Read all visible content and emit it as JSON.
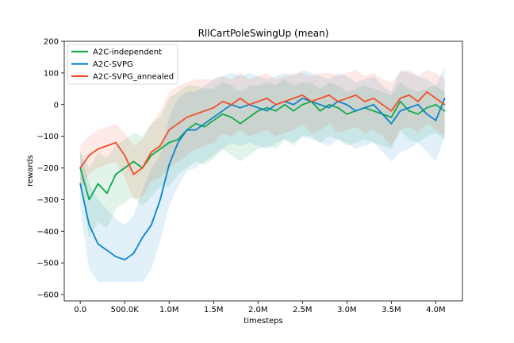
{
  "chart_data": {
    "type": "line",
    "title": "RllCartPoleSwingUp (mean)",
    "xlabel": "timesteps",
    "ylabel": "rewards",
    "xlim": [
      -180000,
      4300000
    ],
    "ylim": [
      -620,
      200
    ],
    "xticks": [
      0,
      500000,
      1000000,
      1500000,
      2000000,
      2500000,
      3000000,
      3500000,
      4000000
    ],
    "xtick_labels": [
      "0.0",
      "500.0K",
      "1.0M",
      "1.5M",
      "2.0M",
      "2.5M",
      "3.0M",
      "3.5M",
      "4.0M"
    ],
    "yticks": [
      200,
      100,
      0,
      -100,
      -200,
      -300,
      -400,
      -500,
      -600
    ],
    "ytick_labels": [
      "200",
      "100",
      "0",
      "−100",
      "−200",
      "−300",
      "−400",
      "−500",
      "−600"
    ],
    "grid": false,
    "legend_position": "top-left",
    "x": [
      0,
      100000,
      200000,
      300000,
      400000,
      500000,
      600000,
      700000,
      800000,
      900000,
      1000000,
      1100000,
      1200000,
      1300000,
      1400000,
      1500000,
      1600000,
      1700000,
      1800000,
      1900000,
      2000000,
      2100000,
      2200000,
      2300000,
      2400000,
      2500000,
      2600000,
      2700000,
      2800000,
      2900000,
      3000000,
      3100000,
      3200000,
      3300000,
      3400000,
      3500000,
      3600000,
      3700000,
      3800000,
      3900000,
      4000000,
      4100000
    ],
    "series": [
      {
        "name": "A2C-independent",
        "color": "#10a84a",
        "values": [
          -200,
          -300,
          -250,
          -280,
          -220,
          -200,
          -180,
          -200,
          -160,
          -140,
          -120,
          -110,
          -80,
          -60,
          -70,
          -50,
          -30,
          -40,
          -60,
          -40,
          -20,
          -10,
          -20,
          0,
          -20,
          0,
          10,
          -20,
          0,
          -10,
          -30,
          -20,
          -10,
          -20,
          -30,
          -40,
          10,
          -20,
          -30,
          -10,
          0,
          -20
        ],
        "upper": [
          -150,
          -200,
          -150,
          -170,
          -130,
          -110,
          -90,
          -100,
          -60,
          -40,
          20,
          40,
          60,
          60,
          50,
          50,
          70,
          60,
          40,
          60,
          60,
          70,
          60,
          80,
          60,
          70,
          70,
          50,
          70,
          60,
          40,
          50,
          60,
          50,
          40,
          30,
          70,
          50,
          40,
          50,
          60,
          40
        ],
        "lower": [
          -250,
          -420,
          -370,
          -390,
          -330,
          -310,
          -290,
          -320,
          -290,
          -260,
          -260,
          -220,
          -200,
          -180,
          -190,
          -170,
          -140,
          -160,
          -180,
          -160,
          -140,
          -130,
          -140,
          -110,
          -130,
          -100,
          -100,
          -120,
          -100,
          -110,
          -130,
          -120,
          -110,
          -120,
          -130,
          -140,
          -80,
          -110,
          -120,
          -100,
          -90,
          -110
        ]
      },
      {
        "name": "A2C-SVPG",
        "color": "#0a84cc",
        "values": [
          -250,
          -380,
          -440,
          -460,
          -480,
          -490,
          -470,
          -420,
          -380,
          -300,
          -190,
          -120,
          -80,
          -80,
          -60,
          -40,
          -20,
          0,
          -10,
          0,
          -10,
          -20,
          0,
          10,
          0,
          20,
          10,
          0,
          -10,
          10,
          0,
          -20,
          -10,
          0,
          -30,
          -60,
          -20,
          -10,
          0,
          -30,
          -50,
          20
        ],
        "upper": [
          -150,
          -250,
          -300,
          -330,
          -360,
          -380,
          -350,
          -270,
          -200,
          -160,
          -40,
          20,
          40,
          40,
          60,
          80,
          90,
          100,
          90,
          100,
          90,
          80,
          90,
          100,
          90,
          110,
          100,
          90,
          80,
          100,
          90,
          70,
          80,
          90,
          60,
          40,
          110,
          100,
          90,
          80,
          60,
          120
        ],
        "lower": [
          -330,
          -520,
          -560,
          -560,
          -560,
          -560,
          -560,
          -560,
          -520,
          -430,
          -320,
          -260,
          -210,
          -200,
          -180,
          -160,
          -140,
          -120,
          -130,
          -120,
          -130,
          -140,
          -120,
          -110,
          -120,
          -100,
          -110,
          -120,
          -130,
          -110,
          -120,
          -140,
          -130,
          -120,
          -150,
          -180,
          -150,
          -140,
          -120,
          -150,
          -180,
          -100
        ]
      },
      {
        "name": "A2C-SVPG_annealed",
        "color": "#f04e28",
        "values": [
          -200,
          -160,
          -140,
          -130,
          -120,
          -160,
          -220,
          -200,
          -150,
          -130,
          -80,
          -60,
          -40,
          -30,
          -20,
          -10,
          10,
          0,
          20,
          0,
          10,
          20,
          0,
          10,
          20,
          30,
          10,
          20,
          30,
          10,
          20,
          30,
          10,
          20,
          0,
          -20,
          20,
          30,
          10,
          40,
          20,
          0
        ],
        "upper": [
          -130,
          -100,
          -80,
          -70,
          -60,
          -90,
          -130,
          -110,
          -60,
          -20,
          40,
          60,
          70,
          80,
          80,
          80,
          90,
          80,
          100,
          80,
          90,
          100,
          80,
          90,
          100,
          100,
          90,
          100,
          100,
          90,
          100,
          110,
          90,
          100,
          80,
          70,
          100,
          110,
          90,
          110,
          100,
          80
        ],
        "lower": [
          -270,
          -220,
          -200,
          -190,
          -180,
          -230,
          -300,
          -290,
          -240,
          -230,
          -200,
          -180,
          -160,
          -140,
          -130,
          -120,
          -90,
          -100,
          -80,
          -100,
          -90,
          -80,
          -100,
          -90,
          -80,
          -60,
          -90,
          -80,
          -60,
          -90,
          -80,
          -70,
          -90,
          -80,
          -100,
          -130,
          -80,
          -70,
          -90,
          -60,
          -80,
          -100
        ]
      }
    ]
  }
}
